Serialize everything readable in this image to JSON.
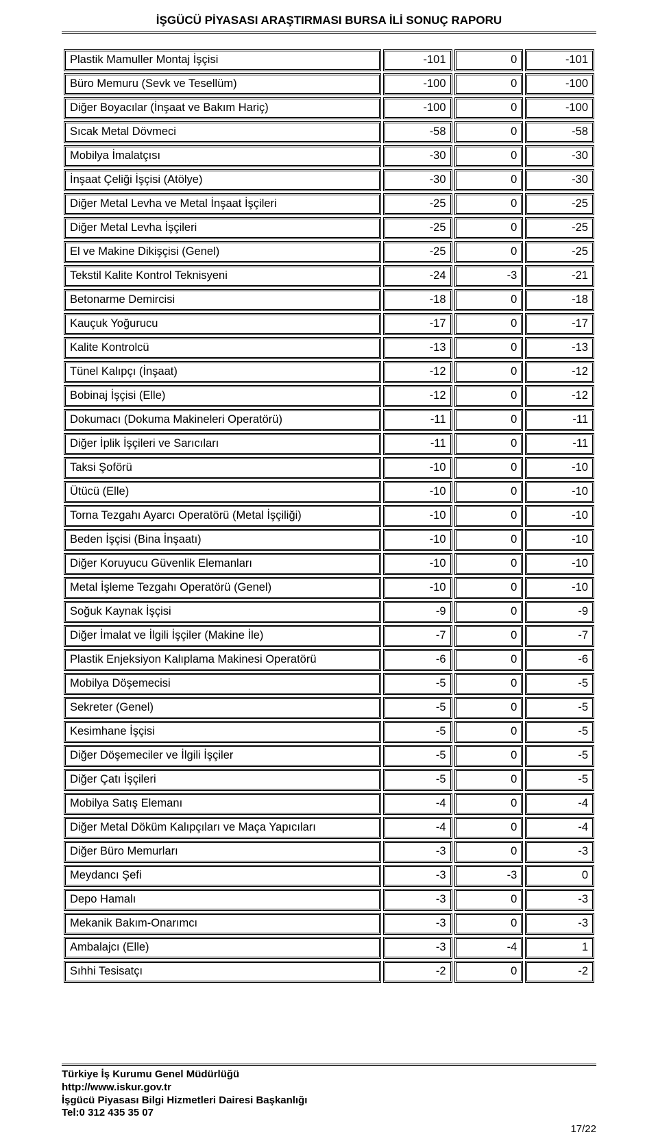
{
  "header": {
    "title": "İŞGÜCÜ PİYASASI ARAŞTIRMASI BURSA İLİ SONUÇ RAPORU"
  },
  "table": {
    "type": "table",
    "col_widths_pct": [
      60,
      13.33,
      13.33,
      13.33
    ],
    "border_color": "#000000",
    "background_color": "#ffffff",
    "font_size_pt": 12,
    "rows": [
      [
        "Plastik Mamuller Montaj İşçisi",
        "-101",
        "0",
        "-101"
      ],
      [
        "Büro Memuru (Sevk ve Tesellüm)",
        "-100",
        "0",
        "-100"
      ],
      [
        "Diğer Boyacılar (İnşaat ve Bakım Hariç)",
        "-100",
        "0",
        "-100"
      ],
      [
        "Sıcak Metal Dövmeci",
        "-58",
        "0",
        "-58"
      ],
      [
        "Mobilya İmalatçısı",
        "-30",
        "0",
        "-30"
      ],
      [
        "İnşaat Çeliği İşçisi (Atölye)",
        "-30",
        "0",
        "-30"
      ],
      [
        "Diğer Metal Levha ve Metal İnşaat İşçileri",
        "-25",
        "0",
        "-25"
      ],
      [
        "Diğer Metal Levha İşçileri",
        "-25",
        "0",
        "-25"
      ],
      [
        "El ve Makine Dikişçisi (Genel)",
        "-25",
        "0",
        "-25"
      ],
      [
        "Tekstil Kalite Kontrol Teknisyeni",
        "-24",
        "-3",
        "-21"
      ],
      [
        "Betonarme Demircisi",
        "-18",
        "0",
        "-18"
      ],
      [
        "Kauçuk Yoğurucu",
        "-17",
        "0",
        "-17"
      ],
      [
        "Kalite Kontrolcü",
        "-13",
        "0",
        "-13"
      ],
      [
        "Tünel Kalıpçı (İnşaat)",
        "-12",
        "0",
        "-12"
      ],
      [
        "Bobinaj İşçisi (Elle)",
        "-12",
        "0",
        "-12"
      ],
      [
        "Dokumacı (Dokuma Makineleri Operatörü)",
        "-11",
        "0",
        "-11"
      ],
      [
        "Diğer İplik İşçileri ve Sarıcıları",
        "-11",
        "0",
        "-11"
      ],
      [
        "Taksi Şoförü",
        "-10",
        "0",
        "-10"
      ],
      [
        "Ütücü (Elle)",
        "-10",
        "0",
        "-10"
      ],
      [
        "Torna Tezgahı Ayarcı Operatörü (Metal İşçiliği)",
        "-10",
        "0",
        "-10"
      ],
      [
        "Beden İşçisi (Bina İnşaatı)",
        "-10",
        "0",
        "-10"
      ],
      [
        "Diğer Koruyucu Güvenlik Elemanları",
        "-10",
        "0",
        "-10"
      ],
      [
        "Metal İşleme Tezgahı Operatörü (Genel)",
        "-10",
        "0",
        "-10"
      ],
      [
        "Soğuk Kaynak İşçisi",
        "-9",
        "0",
        "-9"
      ],
      [
        "Diğer İmalat ve İlgili İşçiler (Makine İle)",
        "-7",
        "0",
        "-7"
      ],
      [
        "Plastik Enjeksiyon Kalıplama Makinesi Operatörü",
        "-6",
        "0",
        "-6"
      ],
      [
        "Mobilya Döşemecisi",
        "-5",
        "0",
        "-5"
      ],
      [
        "Sekreter (Genel)",
        "-5",
        "0",
        "-5"
      ],
      [
        "Kesimhane İşçisi",
        "-5",
        "0",
        "-5"
      ],
      [
        "Diğer Döşemeciler ve İlgili İşçiler",
        "-5",
        "0",
        "-5"
      ],
      [
        "Diğer Çatı İşçileri",
        "-5",
        "0",
        "-5"
      ],
      [
        "Mobilya Satış Elemanı",
        "-4",
        "0",
        "-4"
      ],
      [
        "Diğer Metal Döküm Kalıpçıları ve Maça Yapıcıları",
        "-4",
        "0",
        "-4"
      ],
      [
        "Diğer Büro Memurları",
        "-3",
        "0",
        "-3"
      ],
      [
        "Meydancı Şefi",
        "-3",
        "-3",
        "0"
      ],
      [
        "Depo Hamalı",
        "-3",
        "0",
        "-3"
      ],
      [
        "Mekanik Bakım-Onarımcı",
        "-3",
        "0",
        "-3"
      ],
      [
        "Ambalajcı (Elle)",
        "-3",
        "-4",
        "1"
      ],
      [
        "Sıhhi Tesisatçı",
        "-2",
        "0",
        "-2"
      ]
    ]
  },
  "footer": {
    "lines": [
      "Türkiye İş Kurumu Genel Müdürlüğü",
      "http://www.iskur.gov.tr",
      "İşgücü Piyasası Bilgi Hizmetleri Dairesi Başkanlığı",
      "Tel:0 312 435 35 07"
    ],
    "page_number": "17/22"
  }
}
